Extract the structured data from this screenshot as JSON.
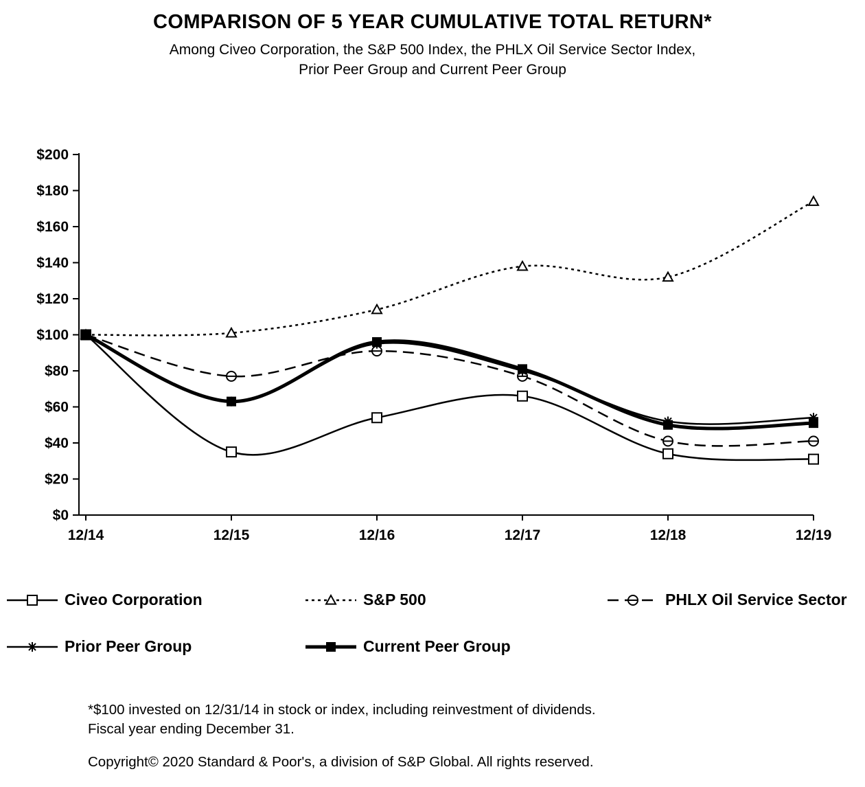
{
  "header": {
    "title": "COMPARISON OF 5 YEAR CUMULATIVE TOTAL RETURN*",
    "subtitle_line1": "Among Civeo Corporation, the S&P 500 Index, the PHLX Oil Service Sector Index,",
    "subtitle_line2": "Prior Peer Group and Current Peer Group"
  },
  "chart_data": {
    "type": "line",
    "title": "COMPARISON OF 5 YEAR CUMULATIVE TOTAL RETURN*",
    "subtitle": "Among Civeo Corporation, the S&P 500 Index, the PHLX Oil Service Sector Index, Prior Peer Group and Current Peer Group",
    "categories": [
      "12/14",
      "12/15",
      "12/16",
      "12/17",
      "12/18",
      "12/19"
    ],
    "series": [
      {
        "name": "Civeo Corporation",
        "marker": "open-square",
        "line": "solid",
        "values": [
          100,
          35,
          54,
          66,
          34,
          31
        ]
      },
      {
        "name": "S&P 500",
        "marker": "open-triangle",
        "line": "dotted",
        "values": [
          100,
          101,
          114,
          138,
          132,
          174
        ]
      },
      {
        "name": "PHLX Oil Service Sector",
        "marker": "open-circle",
        "line": "dashed",
        "values": [
          100,
          77,
          91,
          77,
          41,
          41
        ]
      },
      {
        "name": "Prior Peer Group",
        "marker": "asterisk",
        "line": "solid",
        "values": [
          100,
          63,
          95,
          80,
          52,
          54
        ]
      },
      {
        "name": "Current Peer Group",
        "marker": "filled-square",
        "line": "solid-thick",
        "values": [
          100,
          63,
          96,
          81,
          50,
          51
        ]
      }
    ],
    "xlabel": "",
    "ylabel": "",
    "ylim": [
      0,
      200
    ],
    "ytick_step": 20,
    "ytick_labels": [
      "$0",
      "$20",
      "$40",
      "$60",
      "$80",
      "$100",
      "$120",
      "$140",
      "$160",
      "$180",
      "$200"
    ],
    "grid": false,
    "legend_position": "bottom"
  },
  "footnotes": {
    "line1": "*$100 invested on 12/31/14 in stock or index, including reinvestment of dividends.",
    "line2": "Fiscal year ending December 31.",
    "copyright": "Copyright© 2020 Standard & Poor's, a division of S&P Global. All rights reserved."
  },
  "colors": {
    "line": "#000000",
    "background": "#ffffff"
  }
}
